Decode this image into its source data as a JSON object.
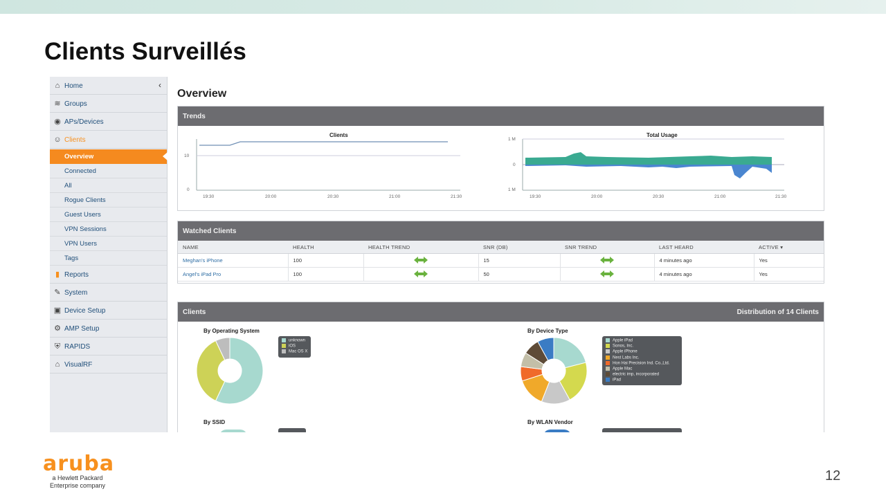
{
  "slide": {
    "title": "Clients Surveillés",
    "page_number": "12",
    "logo_word": "aruba",
    "logo_sub1": "a Hewlett Packard",
    "logo_sub2": "Enterprise company"
  },
  "sidebar": {
    "items": [
      {
        "label": "Home",
        "icon": "home-icon",
        "glyph": "⌂"
      },
      {
        "label": "Groups",
        "icon": "wifi-icon",
        "glyph": "≋"
      },
      {
        "label": "APs/Devices",
        "icon": "eye-icon",
        "glyph": "◉"
      },
      {
        "label": "Clients",
        "icon": "users-icon",
        "glyph": "☺"
      }
    ],
    "sub_items": [
      "Overview",
      "Connected",
      "All",
      "Rogue Clients",
      "Guest Users",
      "VPN Sessions",
      "VPN Users",
      "Tags"
    ],
    "items_after": [
      {
        "label": "Reports",
        "icon": "bar-chart-icon",
        "glyph": "▮"
      },
      {
        "label": "System",
        "icon": "wrench-icon",
        "glyph": "✎"
      },
      {
        "label": "Device Setup",
        "icon": "device-icon",
        "glyph": "▣"
      },
      {
        "label": "AMP Setup",
        "icon": "gears-icon",
        "glyph": "⚙"
      },
      {
        "label": "RAPIDS",
        "icon": "shield-icon",
        "glyph": "⛨"
      },
      {
        "label": "VisualRF",
        "icon": "building-icon",
        "glyph": "⌂"
      }
    ]
  },
  "main": {
    "title": "Overview",
    "trends": {
      "header": "Trends",
      "clients_chart": {
        "title": "Clients",
        "y_ticks": [
          "0",
          "10"
        ],
        "x_ticks": [
          "19:30",
          "20:00",
          "20:30",
          "21:00",
          "21:30"
        ]
      },
      "usage_chart": {
        "title": "Total Usage",
        "y_ticks": [
          "1 M",
          "0",
          "1 M"
        ],
        "x_ticks": [
          "19:30",
          "20:00",
          "20:30",
          "21:00",
          "21:30"
        ]
      }
    },
    "watched": {
      "header": "Watched Clients",
      "columns": [
        "NAME",
        "HEALTH",
        "HEALTH TREND",
        "SNR (DB)",
        "SNR TREND",
        "LAST HEARD",
        "ACTIVE ▾"
      ],
      "rows": [
        {
          "name": "Meghan's iPhone",
          "health": "100",
          "snr": "15",
          "last_heard": "4 minutes ago",
          "active": "Yes"
        },
        {
          "name": "Angel's iPad Pro",
          "health": "100",
          "snr": "50",
          "last_heard": "4 minutes ago",
          "active": "Yes"
        }
      ]
    },
    "clients": {
      "header": "Clients",
      "distribution": "Distribution of 14 Clients",
      "by_os": {
        "title": "By Operating System",
        "legend": [
          "unknown",
          "iOS",
          "Mac OS X"
        ],
        "colors": [
          "#a7d9cf",
          "#cdd257",
          "#bdbdbd"
        ],
        "values": [
          57,
          36,
          7
        ]
      },
      "by_device": {
        "title": "By Device Type",
        "legend": [
          "Apple iPad",
          "Sonos, Inc.",
          "Apple iPhone",
          "Nest Labs Inc.",
          "Hon Hai Precision Ind. Co.,Ltd.",
          "Apple Mac",
          "electric imp, incorporated",
          "iPad"
        ],
        "colors": [
          "#a7d9cf",
          "#d4d94e",
          "#c8c8c8",
          "#f0a92a",
          "#f06a2a",
          "#c3bfa8",
          "#5e4b37",
          "#3a7cc4"
        ],
        "values": [
          21,
          21,
          14,
          14,
          7,
          7,
          8,
          8
        ]
      },
      "by_ssid": {
        "title": "By SSID"
      },
      "by_vendor": {
        "title": "By WLAN Vendor"
      }
    }
  }
}
